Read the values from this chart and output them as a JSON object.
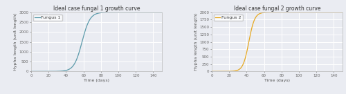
{
  "title1": "Ideal case fungal 1 growth curve",
  "title2": "Ideal case fungal 2 growth curve",
  "legend1": "Fungus 1",
  "legend2": "Fungus 2",
  "xlabel": "Time (days)",
  "ylabel": "Hypha length (unit length)",
  "color1": "#5b9aaa",
  "color2": "#e6a820",
  "bg_color": "#eaecf2",
  "grid_color": "#ffffff",
  "t_max": 150,
  "K1": 3000,
  "K2": 2000,
  "r1": 0.22,
  "r2": 0.3,
  "t0_1": 42,
  "t0_2": 32,
  "y0_1": 80,
  "y0_2": 80,
  "xlim": [
    0,
    150
  ],
  "ylim1": [
    0,
    3000
  ],
  "ylim2": [
    0,
    2000
  ],
  "xticks": [
    0,
    20,
    40,
    60,
    80,
    100,
    120,
    140
  ],
  "yticks1": [
    0,
    500,
    1000,
    1500,
    2000,
    2500,
    3000
  ],
  "yticks2": [
    0,
    250,
    500,
    750,
    1000,
    1250,
    1500,
    1750,
    2000
  ],
  "title_fontsize": 5.5,
  "label_fontsize": 4.5,
  "tick_fontsize": 4.0,
  "legend_fontsize": 4.5,
  "linewidth": 0.9
}
